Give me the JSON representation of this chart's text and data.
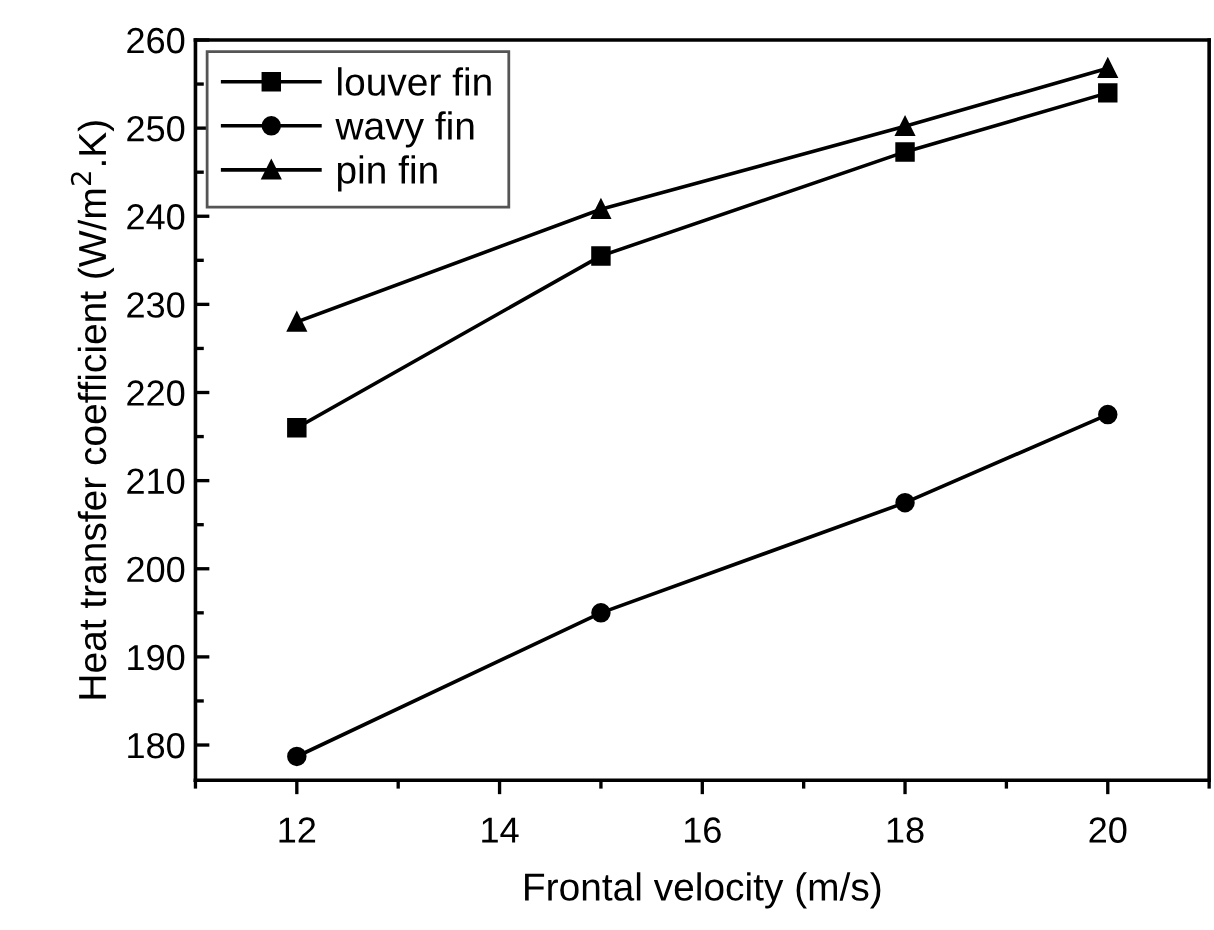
{
  "chart_data": {
    "type": "line",
    "xlabel": "Frontal velocity (m/s)",
    "ylabel": "Heat transfer coefficient (W/m$^{2}$.K)",
    "x": [
      12,
      15,
      18,
      20
    ],
    "series": [
      {
        "name": "louver fin",
        "color": "#000000",
        "marker": "square",
        "values": [
          216,
          235.5,
          247.3,
          254
        ]
      },
      {
        "name": "wavy fin",
        "color": "#000000",
        "marker": "circle",
        "values": [
          178.7,
          195,
          207.5,
          217.5
        ]
      },
      {
        "name": "pin fin",
        "color": "#000000",
        "marker": "triangle",
        "values": [
          228,
          240.8,
          250.2,
          256.8
        ]
      }
    ],
    "xlim": [
      11,
      21
    ],
    "xticks": [
      12,
      14,
      16,
      18,
      20
    ],
    "ylim": [
      176,
      260
    ],
    "yticks": [
      180,
      190,
      200,
      210,
      220,
      230,
      240,
      250,
      260
    ],
    "line_style": "solid",
    "grid": false,
    "legend": "top left"
  }
}
